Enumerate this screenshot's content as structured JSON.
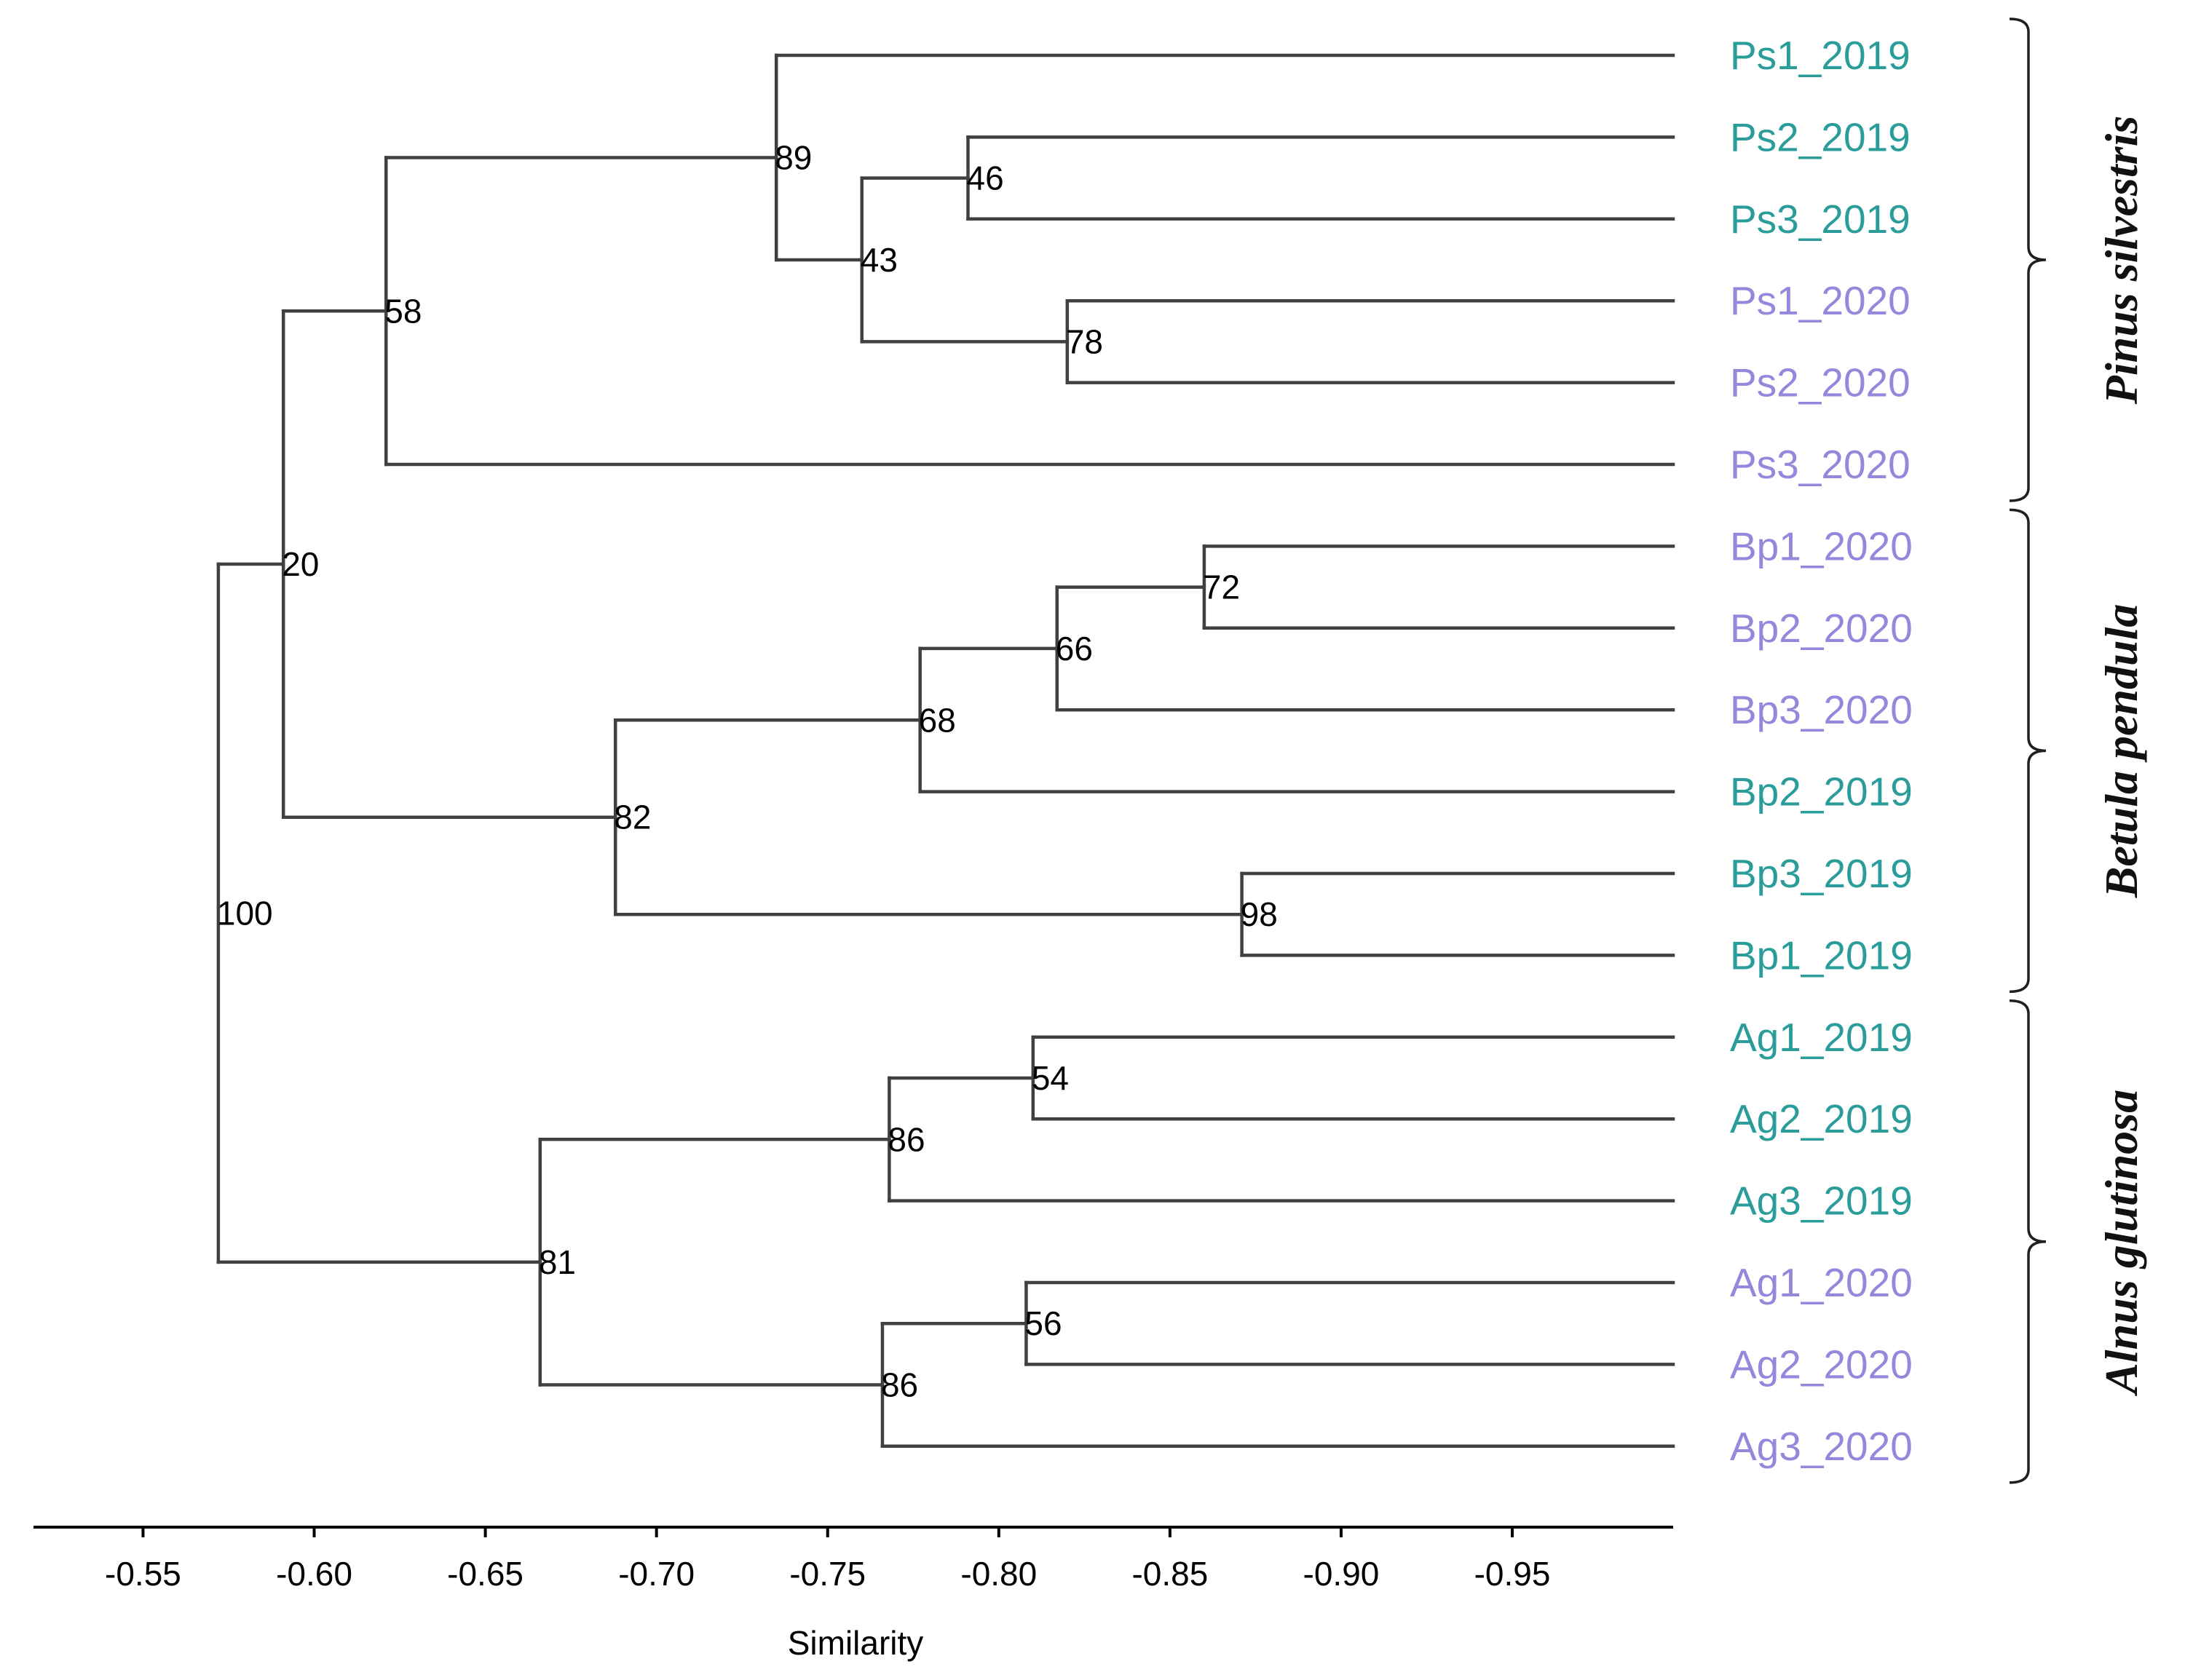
{
  "chart_data": {
    "type": "dendrogram",
    "xlabel": "Similarity",
    "xlim": [
      -0.518,
      -0.997
    ],
    "xticks": [
      -0.55,
      -0.6,
      -0.65,
      -0.7,
      -0.75,
      -0.8,
      -0.85,
      -0.9,
      -0.95
    ],
    "xtick_labels": [
      "-0.55",
      "-0.60",
      "-0.65",
      "-0.70",
      "-0.75",
      "-0.80",
      "-0.85",
      "-0.90",
      "-0.95"
    ],
    "colors": {
      "year_2019": "#2a9d9a",
      "year_2020": "#9686dc",
      "lines": "#404040"
    },
    "leaves": [
      {
        "label": "Ps1_2019",
        "year": "2019"
      },
      {
        "label": "Ps2_2019",
        "year": "2019"
      },
      {
        "label": "Ps3_2019",
        "year": "2019"
      },
      {
        "label": "Ps1_2020",
        "year": "2020"
      },
      {
        "label": "Ps2_2020",
        "year": "2020"
      },
      {
        "label": "Ps3_2020",
        "year": "2020"
      },
      {
        "label": "Bp1_2020",
        "year": "2020"
      },
      {
        "label": "Bp2_2020",
        "year": "2020"
      },
      {
        "label": "Bp3_2020",
        "year": "2020"
      },
      {
        "label": "Bp2_2019",
        "year": "2019"
      },
      {
        "label": "Bp3_2019",
        "year": "2019"
      },
      {
        "label": "Bp1_2019",
        "year": "2019"
      },
      {
        "label": "Ag1_2019",
        "year": "2019"
      },
      {
        "label": "Ag2_2019",
        "year": "2019"
      },
      {
        "label": "Ag3_2019",
        "year": "2019"
      },
      {
        "label": "Ag1_2020",
        "year": "2020"
      },
      {
        "label": "Ag2_2020",
        "year": "2020"
      },
      {
        "label": "Ag3_2020",
        "year": "2020"
      }
    ],
    "leaf_similarity": -0.997,
    "nodes": [
      {
        "id": "n46",
        "children": [
          "Ps2_2019",
          "Ps3_2019"
        ],
        "similarity": -0.791,
        "support": "46"
      },
      {
        "id": "n78",
        "children": [
          "Ps1_2020",
          "Ps2_2020"
        ],
        "similarity": -0.82,
        "support": "78"
      },
      {
        "id": "n43",
        "children": [
          "n46",
          "n78"
        ],
        "similarity": -0.76,
        "support": "43"
      },
      {
        "id": "n89",
        "children": [
          "Ps1_2019",
          "n43"
        ],
        "similarity": -0.735,
        "support": "89"
      },
      {
        "id": "n58",
        "children": [
          "n89",
          "Ps3_2020"
        ],
        "similarity": -0.621,
        "support": "58"
      },
      {
        "id": "n72",
        "children": [
          "Bp1_2020",
          "Bp2_2020"
        ],
        "similarity": -0.86,
        "support": "72"
      },
      {
        "id": "n66",
        "children": [
          "n72",
          "Bp3_2020"
        ],
        "similarity": -0.817,
        "support": "66"
      },
      {
        "id": "n68",
        "children": [
          "n66",
          "Bp2_2019"
        ],
        "similarity": -0.777,
        "support": "68"
      },
      {
        "id": "n98",
        "children": [
          "Bp3_2019",
          "Bp1_2019"
        ],
        "similarity": -0.871,
        "support": "98"
      },
      {
        "id": "n82",
        "children": [
          "n68",
          "n98"
        ],
        "similarity": -0.688,
        "support": "82"
      },
      {
        "id": "n20",
        "children": [
          "n58",
          "n82"
        ],
        "similarity": -0.591,
        "support": "20"
      },
      {
        "id": "n54",
        "children": [
          "Ag1_2019",
          "Ag2_2019"
        ],
        "similarity": -0.81,
        "support": "54"
      },
      {
        "id": "n86a",
        "children": [
          "n54",
          "Ag3_2019"
        ],
        "similarity": -0.768,
        "support": "86"
      },
      {
        "id": "n56",
        "children": [
          "Ag1_2020",
          "Ag2_2020"
        ],
        "similarity": -0.808,
        "support": "56"
      },
      {
        "id": "n86b",
        "children": [
          "n56",
          "Ag3_2020"
        ],
        "similarity": -0.766,
        "support": "86"
      },
      {
        "id": "n81",
        "children": [
          "n86a",
          "n86b"
        ],
        "similarity": -0.666,
        "support": "81"
      },
      {
        "id": "n100",
        "children": [
          "n20",
          "n81"
        ],
        "similarity": -0.572,
        "support": "100"
      }
    ],
    "groups": [
      {
        "name": "Pinus silvestris",
        "from": "Ps1_2019",
        "to": "Ps3_2020"
      },
      {
        "name": "Betula pendula",
        "from": "Bp1_2020",
        "to": "Bp1_2019"
      },
      {
        "name": "Alnus glutinosa",
        "from": "Ag1_2019",
        "to": "Ag3_2020"
      }
    ]
  }
}
